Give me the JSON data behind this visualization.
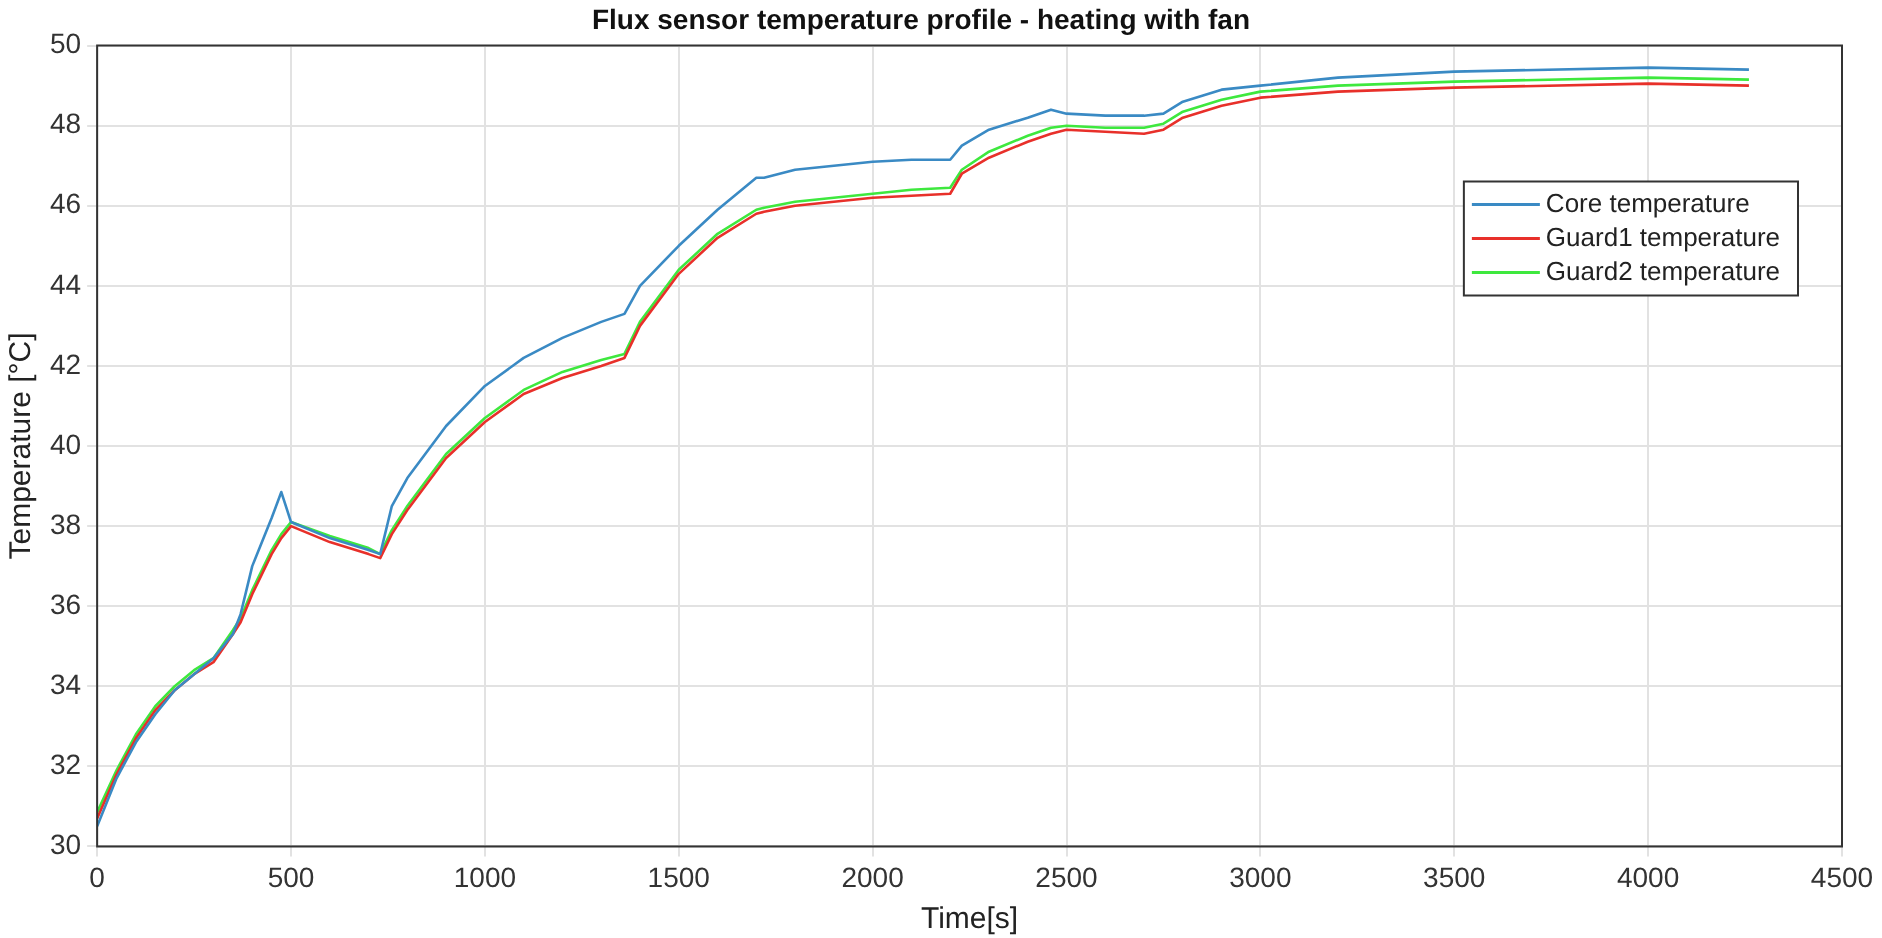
{
  "chart_data": {
    "type": "line",
    "title": "Flux sensor temperature profile - heating with fan",
    "xlabel": "Time[s]",
    "ylabel": "Temperature [°C]",
    "x": [
      0,
      50,
      100,
      150,
      200,
      250,
      300,
      350,
      370,
      400,
      450,
      475,
      500,
      600,
      700,
      730,
      760,
      800,
      900,
      1000,
      1100,
      1200,
      1300,
      1360,
      1400,
      1500,
      1600,
      1700,
      1720,
      1800,
      2000,
      2100,
      2200,
      2230,
      2300,
      2400,
      2460,
      2500,
      2600,
      2700,
      2750,
      2800,
      2900,
      3000,
      3200,
      3500,
      4000,
      4260
    ],
    "series": [
      {
        "name": "Core temperature",
        "color": "#3a8ac4",
        "values": [
          30.5,
          31.7,
          32.6,
          33.3,
          33.9,
          34.3,
          34.7,
          35.3,
          35.8,
          37.0,
          38.2,
          38.85,
          38.1,
          37.7,
          37.4,
          37.3,
          38.5,
          39.2,
          40.5,
          41.5,
          42.2,
          42.7,
          43.1,
          43.3,
          44.0,
          45.0,
          45.9,
          46.7,
          46.7,
          46.9,
          47.1,
          47.15,
          47.15,
          47.5,
          47.9,
          48.2,
          48.4,
          48.3,
          48.25,
          48.25,
          48.3,
          48.6,
          48.9,
          49.0,
          49.2,
          49.35,
          49.45,
          49.4
        ]
      },
      {
        "name": "Guard1 temperature",
        "color": "#e8302a",
        "values": [
          30.7,
          31.8,
          32.7,
          33.4,
          33.9,
          34.3,
          34.6,
          35.3,
          35.6,
          36.3,
          37.3,
          37.7,
          38.0,
          37.6,
          37.3,
          37.2,
          37.8,
          38.4,
          39.7,
          40.6,
          41.3,
          41.7,
          42.0,
          42.2,
          43.0,
          44.3,
          45.2,
          45.8,
          45.85,
          46.0,
          46.2,
          46.25,
          46.3,
          46.8,
          47.2,
          47.6,
          47.8,
          47.9,
          47.85,
          47.8,
          47.9,
          48.2,
          48.5,
          48.7,
          48.85,
          48.95,
          49.05,
          49.0
        ]
      },
      {
        "name": "Guard2 temperature",
        "color": "#3ee83e",
        "values": [
          30.85,
          31.9,
          32.8,
          33.5,
          34.0,
          34.4,
          34.7,
          35.4,
          35.7,
          36.4,
          37.4,
          37.8,
          38.1,
          37.75,
          37.45,
          37.3,
          37.9,
          38.5,
          39.8,
          40.7,
          41.4,
          41.85,
          42.15,
          42.3,
          43.1,
          44.4,
          45.3,
          45.9,
          45.95,
          46.1,
          46.3,
          46.4,
          46.45,
          46.9,
          47.35,
          47.75,
          47.95,
          48.0,
          47.95,
          47.95,
          48.05,
          48.35,
          48.65,
          48.85,
          49.0,
          49.1,
          49.2,
          49.15
        ]
      }
    ],
    "xlim": [
      0,
      4500
    ],
    "xticks": [
      0,
      500,
      1000,
      1500,
      2000,
      2500,
      3000,
      3500,
      4000,
      4500
    ],
    "ylim": [
      30,
      50
    ],
    "yticks": [
      30,
      32,
      34,
      36,
      38,
      40,
      42,
      44,
      46,
      48,
      50
    ],
    "grid": true,
    "legend": "top right",
    "marker": "none",
    "line_style": "solid"
  }
}
